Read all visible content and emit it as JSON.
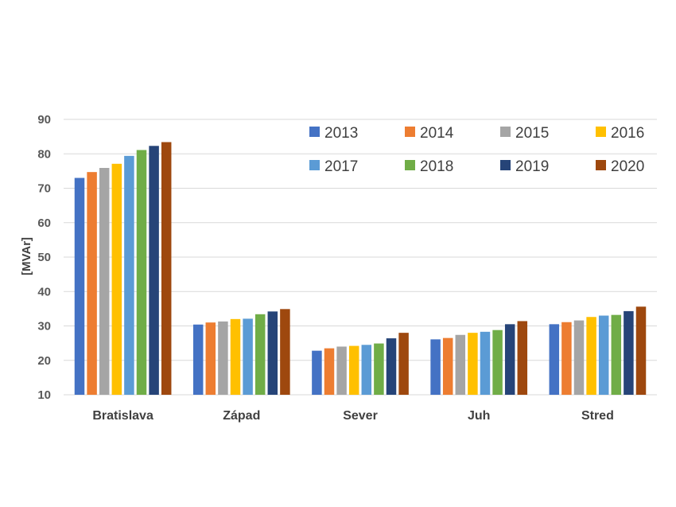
{
  "chart_data": {
    "type": "bar",
    "title": "",
    "xlabel": "",
    "ylabel": "[MVAr]",
    "ylim": [
      10,
      90
    ],
    "yticks": [
      10,
      20,
      30,
      40,
      50,
      60,
      70,
      80,
      90
    ],
    "grid": true,
    "legend_position": "top-right",
    "categories": [
      "Bratislava",
      "Západ",
      "Sever",
      "Juh",
      "Stred"
    ],
    "series": [
      {
        "name": "2013",
        "color": "#4472C4",
        "values": [
          73.0,
          30.4,
          22.8,
          26.1,
          30.5
        ]
      },
      {
        "name": "2014",
        "color": "#ED7D31",
        "values": [
          74.7,
          31.0,
          23.5,
          26.5,
          31.1
        ]
      },
      {
        "name": "2015",
        "color": "#A5A5A5",
        "values": [
          75.9,
          31.3,
          24.0,
          27.4,
          31.6
        ]
      },
      {
        "name": "2016",
        "color": "#FFC000",
        "values": [
          77.1,
          32.0,
          24.2,
          28.0,
          32.6
        ]
      },
      {
        "name": "2017",
        "color": "#5B9BD5",
        "values": [
          79.4,
          32.1,
          24.5,
          28.3,
          33.0
        ]
      },
      {
        "name": "2018",
        "color": "#70AD47",
        "values": [
          81.1,
          33.4,
          24.9,
          28.8,
          33.2
        ]
      },
      {
        "name": "2019",
        "color": "#264478",
        "values": [
          82.3,
          34.2,
          26.4,
          30.5,
          34.3
        ]
      },
      {
        "name": "2020",
        "color": "#9E480E",
        "values": [
          83.4,
          34.9,
          28.0,
          31.4,
          35.6
        ]
      }
    ]
  }
}
